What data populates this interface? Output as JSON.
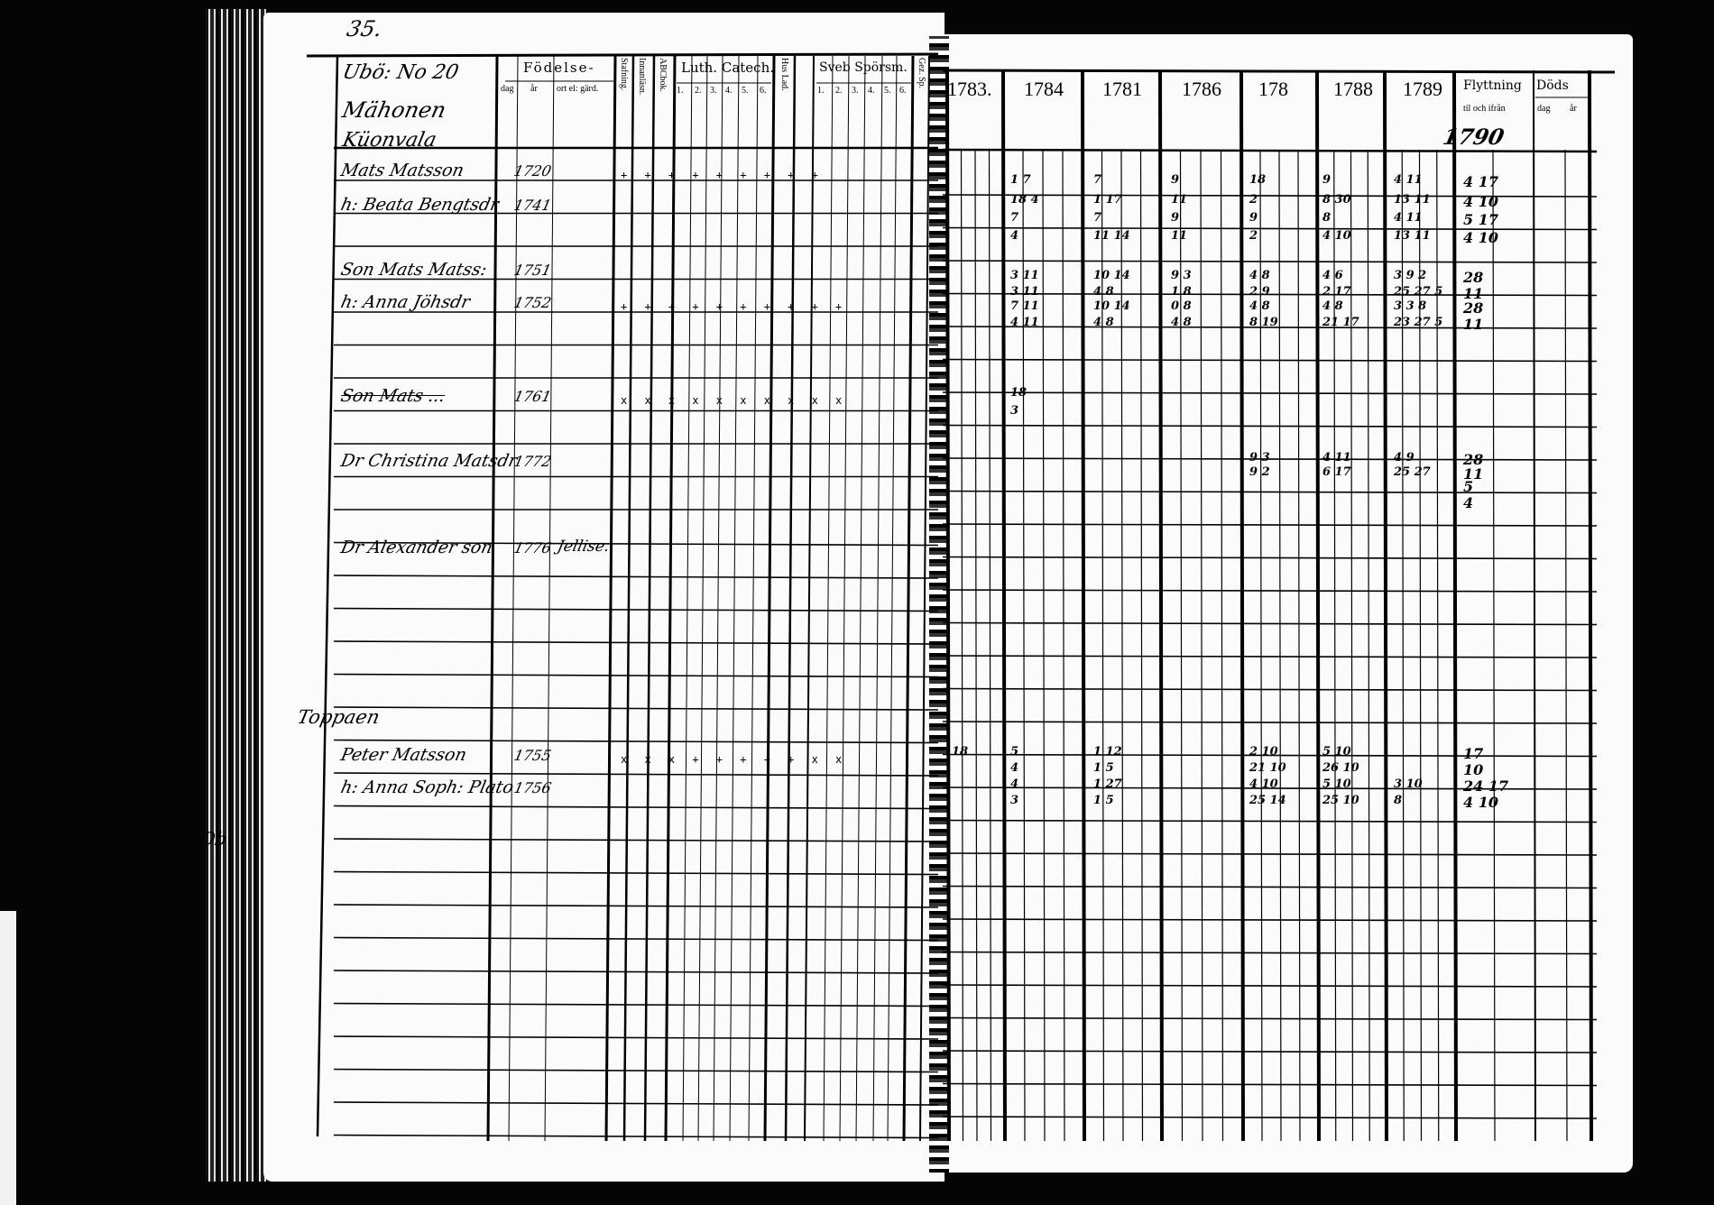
{
  "page_number": "35.",
  "left_page": {
    "header": {
      "title_line1": "Ubö: No 20",
      "title_line2": "Mähonen",
      "title_line3": "Küonvala",
      "fodelse": "Födelse-",
      "dag": "dag",
      "ar": "år",
      "ort": "ort el: gärd.",
      "stafning": "Stafning.",
      "innanlasn": "Innanläsn.",
      "abcbok": "ABCbok.",
      "luth_catech": "Luth. Catech.",
      "luth_cols": [
        "1.",
        "2.",
        "3.",
        "4.",
        "5.",
        "6."
      ],
      "hus_lad": "Hus Lad.",
      "sveb_sporsm": "Sveb Spörsm.",
      "sveb_cols": [
        "1.",
        "2.",
        "3.",
        "4.",
        "5.",
        "6."
      ],
      "gez_sp": "Gez. Sp."
    },
    "entries": [
      {
        "name": "Mats Matsson",
        "year": "1720",
        "marks": "+ + + + + + + + +"
      },
      {
        "name": "h: Beata Bengtsdr",
        "year": "1741",
        "marks": ""
      },
      {
        "name": "Son Mats Matss:",
        "year": "1751",
        "marks": ""
      },
      {
        "name": "h: Anna Jöhsdr",
        "year": "1752",
        "marks": "+ + + + + + + + + +"
      },
      {
        "name": "Son Mats ...",
        "year": "1761",
        "marks": "x x x x x x x x x x"
      },
      {
        "name": "Dr Christina Matsdr",
        "year": "1772",
        "marks": ""
      },
      {
        "name": "Dr Alexander son",
        "year": "1776",
        "place": "Jellise.",
        "marks": ""
      },
      {
        "name": "Peter Matsson",
        "year": "1755",
        "marks": "x x x + + + + + x x"
      },
      {
        "name": "h: Anna Soph: Plato",
        "year": "1756",
        "marks": ""
      }
    ],
    "section_label": "Toppaen",
    "margin_note": "Ob"
  },
  "right_page": {
    "years": [
      "1783.",
      "1784",
      "1781",
      "1786",
      "178",
      "1788",
      "1789"
    ],
    "flyttning": "Flyttning",
    "flyttning_sub": "til och ifrån",
    "dods": "Döds",
    "dods_dag": "dag",
    "dods_ar": "år",
    "flyttning_year": "1790",
    "groups": [
      {
        "rows": [
          [
            "",
            "1 7",
            "7",
            "9",
            "18",
            "9",
            "4 11",
            "4 17"
          ],
          [
            "",
            "18 4",
            "1 17",
            "11",
            "2",
            "8 30",
            "13 11",
            "4 10"
          ],
          [
            "",
            "7",
            "7",
            "9",
            "9",
            "8",
            "4 11",
            "5 17"
          ],
          [
            "",
            "4",
            "11 14",
            "11",
            "2",
            "4 10",
            "13 11",
            "4 10"
          ]
        ]
      },
      {
        "rows": [
          [
            "",
            "3 11",
            "10 14",
            "9 3",
            "4 8",
            "4 6",
            "3 9 2",
            "28"
          ],
          [
            "",
            "3 11",
            "4 8",
            "1 8",
            "2 9",
            "2 17",
            "25 27 5",
            "11"
          ],
          [
            "",
            "7 11",
            "10 14",
            "0 8",
            "4 8",
            "4 8",
            "3 3 8",
            "28"
          ],
          [
            "",
            "4 11",
            "4 8",
            "4 8",
            "8 19",
            "21 17",
            "23 27 5",
            "11"
          ]
        ]
      },
      {
        "rows": [
          [
            "",
            "18",
            "",
            "",
            "",
            "",
            "",
            ""
          ],
          [
            "",
            "3",
            "",
            "",
            "",
            "",
            "",
            ""
          ]
        ]
      },
      {
        "rows": [
          [
            "",
            "",
            "",
            "",
            "9 3",
            "4 11",
            "4 9",
            "28"
          ],
          [
            "",
            "",
            "",
            "",
            "9 2",
            "6 17",
            "25 27",
            "11"
          ],
          [
            "",
            "",
            "",
            "",
            "",
            "",
            "",
            "5"
          ],
          [
            "",
            "",
            "",
            "",
            "",
            "",
            "",
            "4"
          ]
        ]
      },
      {
        "rows": [
          [
            "18",
            "5",
            "1 12",
            "",
            "2 10",
            "5 10",
            "",
            "17"
          ],
          [
            "",
            "4",
            "1 5",
            "",
            "21 10",
            "26 10",
            "",
            "10"
          ],
          [
            "",
            "4",
            "1 27",
            "",
            "4 10",
            "5 10",
            "3 10",
            "24 17"
          ],
          [
            "",
            "3",
            "1 5",
            "",
            "25 14",
            "25 10",
            "8",
            "4 10"
          ]
        ]
      }
    ]
  }
}
